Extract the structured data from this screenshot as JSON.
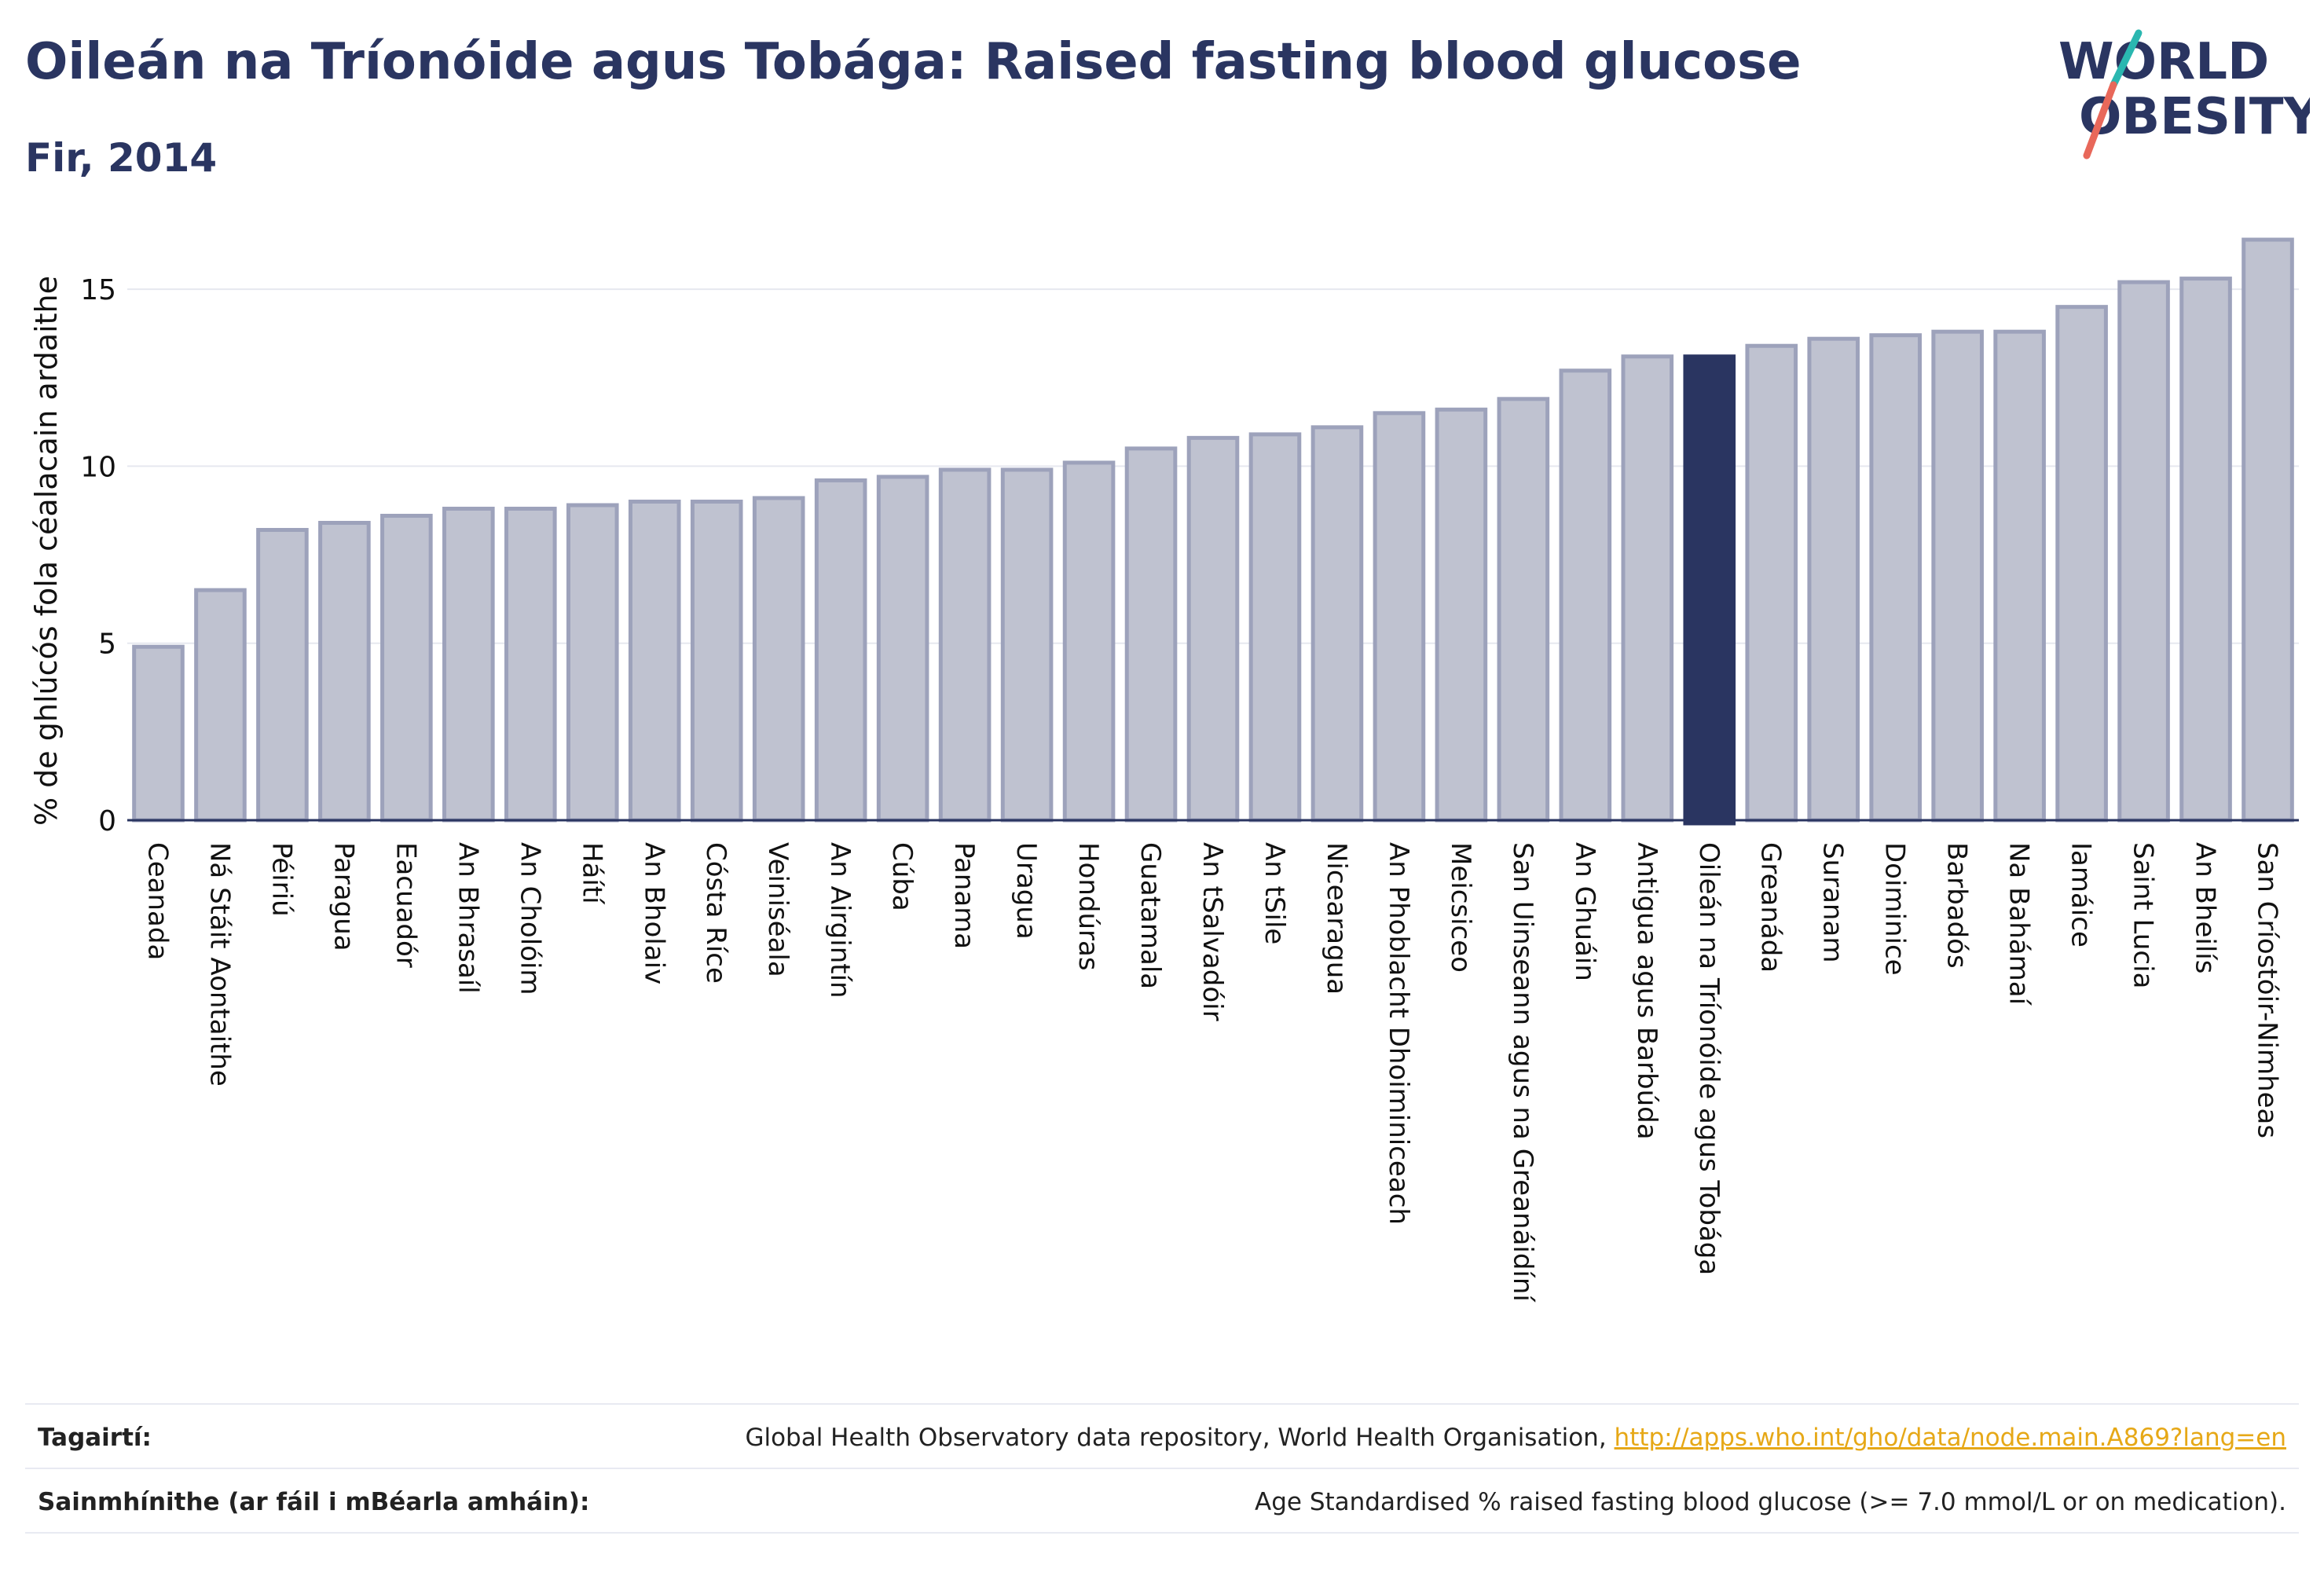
{
  "header": {
    "title": "Oileán na Tríonóide agus Tobága: Raised fasting blood glucose",
    "subtitle": "Fir, 2014"
  },
  "logo": {
    "line1": "WORLD",
    "line2": "OBESITY",
    "accent_colors": [
      "#2ab7b0",
      "#e8685a"
    ]
  },
  "colors": {
    "bar": "#bfc2d0",
    "bar_edge": "#9da2bb",
    "highlight": "#2a3561",
    "text": "#2a3561"
  },
  "chart_data": {
    "type": "bar",
    "ylabel": "% de ghlúcós fola céalacain ardaithe",
    "ylim": [
      0,
      17
    ],
    "yticks": [
      0,
      5,
      10,
      15
    ],
    "highlight": "Oileán na Tríonóide agus Tobága",
    "categories": [
      "Ceanada",
      "Ná Stáit Aontaithe",
      "Péiriú",
      "Paragua",
      "Eacuadór",
      "An Bhrasaíl",
      "An Cholóim",
      "Háítí",
      "An Bholaiv",
      "Cósta Ríce",
      "Veiniséala",
      "An Airgintín",
      "Cúba",
      "Panama",
      "Uragua",
      "Hondúras",
      "Guatamala",
      "An tSalvadóir",
      "An tSile",
      "Nicearagua",
      "An Phoblacht Dhoiminiceach",
      "Meicsiceo",
      "San Uinseann agus na Greanáidíní",
      "An Ghuáin",
      "Antigua agus Barbúda",
      "Oileán na Tríonóide agus Tobága",
      "Greanáda",
      "Suranam",
      "Doiminice",
      "Barbadós",
      "Na Bahámaí",
      "Iamáice",
      "Saint Lucia",
      "An Bheilís",
      "San Críostóir-Nimheas"
    ],
    "values": [
      4.9,
      6.5,
      8.2,
      8.4,
      8.6,
      8.8,
      8.8,
      8.9,
      9.0,
      9.0,
      9.1,
      9.6,
      9.7,
      9.9,
      9.9,
      10.1,
      10.5,
      10.8,
      10.9,
      11.1,
      11.5,
      11.6,
      11.9,
      12.7,
      13.1,
      13.1,
      13.4,
      13.6,
      13.7,
      13.8,
      13.8,
      14.5,
      15.2,
      15.3,
      16.4
    ]
  },
  "footer": {
    "references_label": "Tagairtí:",
    "references_text": "Global Health Observatory data repository, World Health Organisation, ",
    "references_link": "http://apps.who.int/gho/data/node.main.A869?lang=en",
    "definitions_label": "Sainmhínithe (ar fáil i mBéarla amháin):",
    "definitions_text": "Age Standardised % raised fasting blood glucose (>= 7.0 mmol/L or on medication)."
  }
}
